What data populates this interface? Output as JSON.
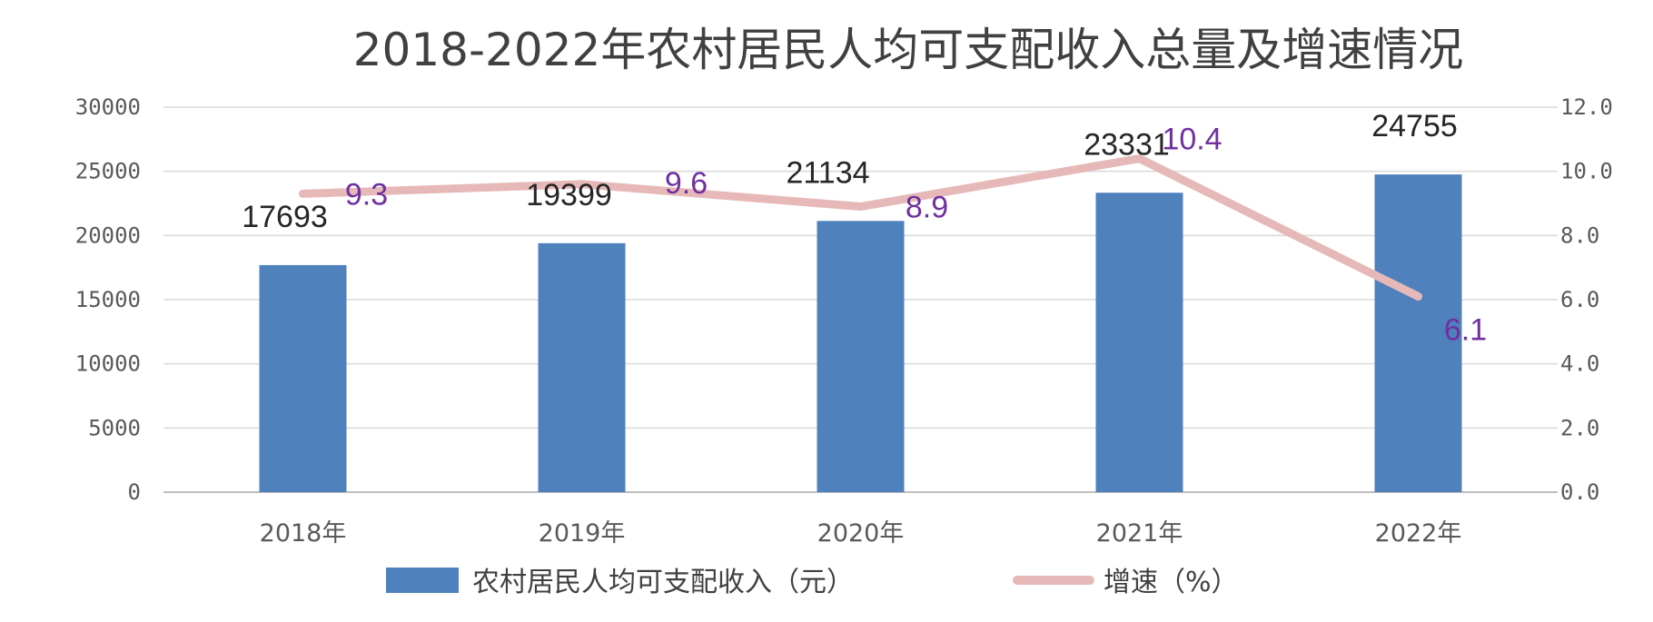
{
  "chart_data": {
    "type": "bar",
    "title": "2018-2022年农村居民人均可支配收入总量及增速情况",
    "categories": [
      "2018年",
      "2019年",
      "2020年",
      "2021年",
      "2022年"
    ],
    "series": [
      {
        "name": "农村居民人均可支配收入（元）",
        "type": "bar",
        "axis": "left",
        "color": "#4f81bd",
        "values": [
          17693,
          19399,
          21134,
          23331,
          24755
        ],
        "labels": [
          "17693",
          "19399",
          "21134",
          "23331",
          "24755"
        ]
      },
      {
        "name": "增速（%）",
        "type": "line",
        "axis": "right",
        "color": "#e6b9b8",
        "values": [
          9.3,
          9.6,
          8.9,
          10.4,
          6.1
        ],
        "labels": [
          "9.3",
          "9.6",
          "8.9",
          "10.4",
          "6.1"
        ]
      }
    ],
    "y_left": {
      "ylim": [
        0,
        30000
      ],
      "ticks": [
        0,
        5000,
        10000,
        15000,
        20000,
        25000,
        30000
      ],
      "tick_labels": [
        "0",
        "5000",
        "10000",
        "15000",
        "20000",
        "25000",
        "30000"
      ]
    },
    "y_right": {
      "ylim": [
        0,
        12
      ],
      "ticks": [
        0,
        2,
        4,
        6,
        8,
        10,
        12
      ],
      "tick_labels": [
        "0.0",
        "2.0",
        "4.0",
        "6.0",
        "8.0",
        "10.0",
        "12.0"
      ]
    },
    "grid": true,
    "legend_position": "bottom",
    "bar_label_color": "#262626",
    "line_label_color": "#7030a0"
  }
}
